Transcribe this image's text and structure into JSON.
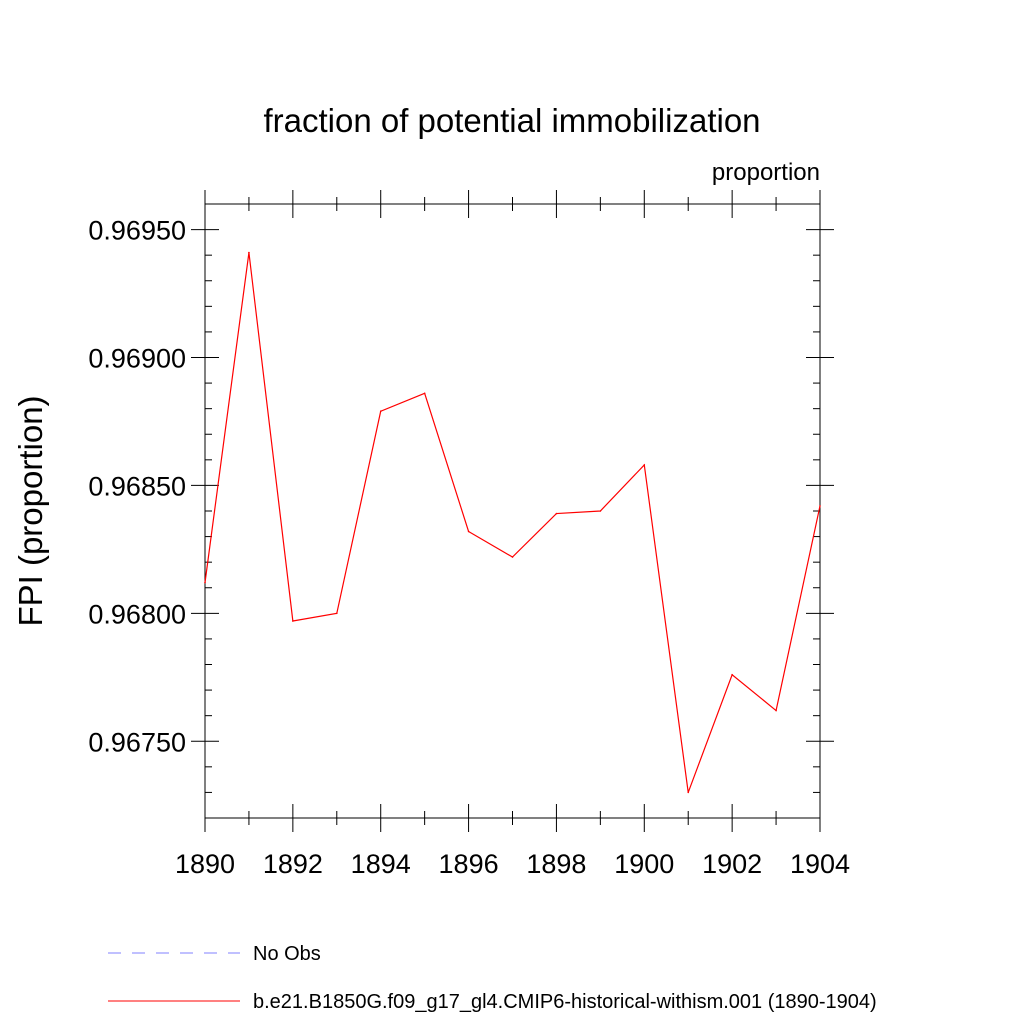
{
  "chart_data": {
    "type": "line",
    "title": "fraction of potential immobilization",
    "units_label": "proportion",
    "ylabel": "FPI  (proportion)",
    "xlabel": "",
    "xlim": [
      1890,
      1904
    ],
    "ylim": [
      0.9672,
      0.9696
    ],
    "x_ticks": [
      1890,
      1892,
      1894,
      1896,
      1898,
      1900,
      1902,
      1904
    ],
    "x_tick_labels": [
      "1890",
      "1892",
      "1894",
      "1896",
      "1898",
      "1900",
      "1902",
      "1904"
    ],
    "y_ticks": [
      0.9675,
      0.968,
      0.9685,
      0.969,
      0.9695
    ],
    "y_tick_labels": [
      "0.96750",
      "0.96800",
      "0.96850",
      "0.96900",
      "0.96950"
    ],
    "grid": false,
    "legend_position": "bottom",
    "series": [
      {
        "name": "b.e21.B1850G.f09_g17_gl4.CMIP6-historical-withism.001 (1890-1904)",
        "color": "#ff0000",
        "style": "solid",
        "x": [
          1890,
          1891,
          1892,
          1893,
          1894,
          1895,
          1896,
          1897,
          1898,
          1899,
          1900,
          1901,
          1902,
          1903,
          1904
        ],
        "values": [
          0.96812,
          0.96941,
          0.96797,
          0.968,
          0.96879,
          0.96886,
          0.96832,
          0.96822,
          0.96839,
          0.9684,
          0.96858,
          0.9673,
          0.96776,
          0.96762,
          0.96842
        ]
      },
      {
        "name": "No Obs",
        "color": "#8080ff",
        "style": "dashed",
        "x": [],
        "values": []
      }
    ]
  }
}
